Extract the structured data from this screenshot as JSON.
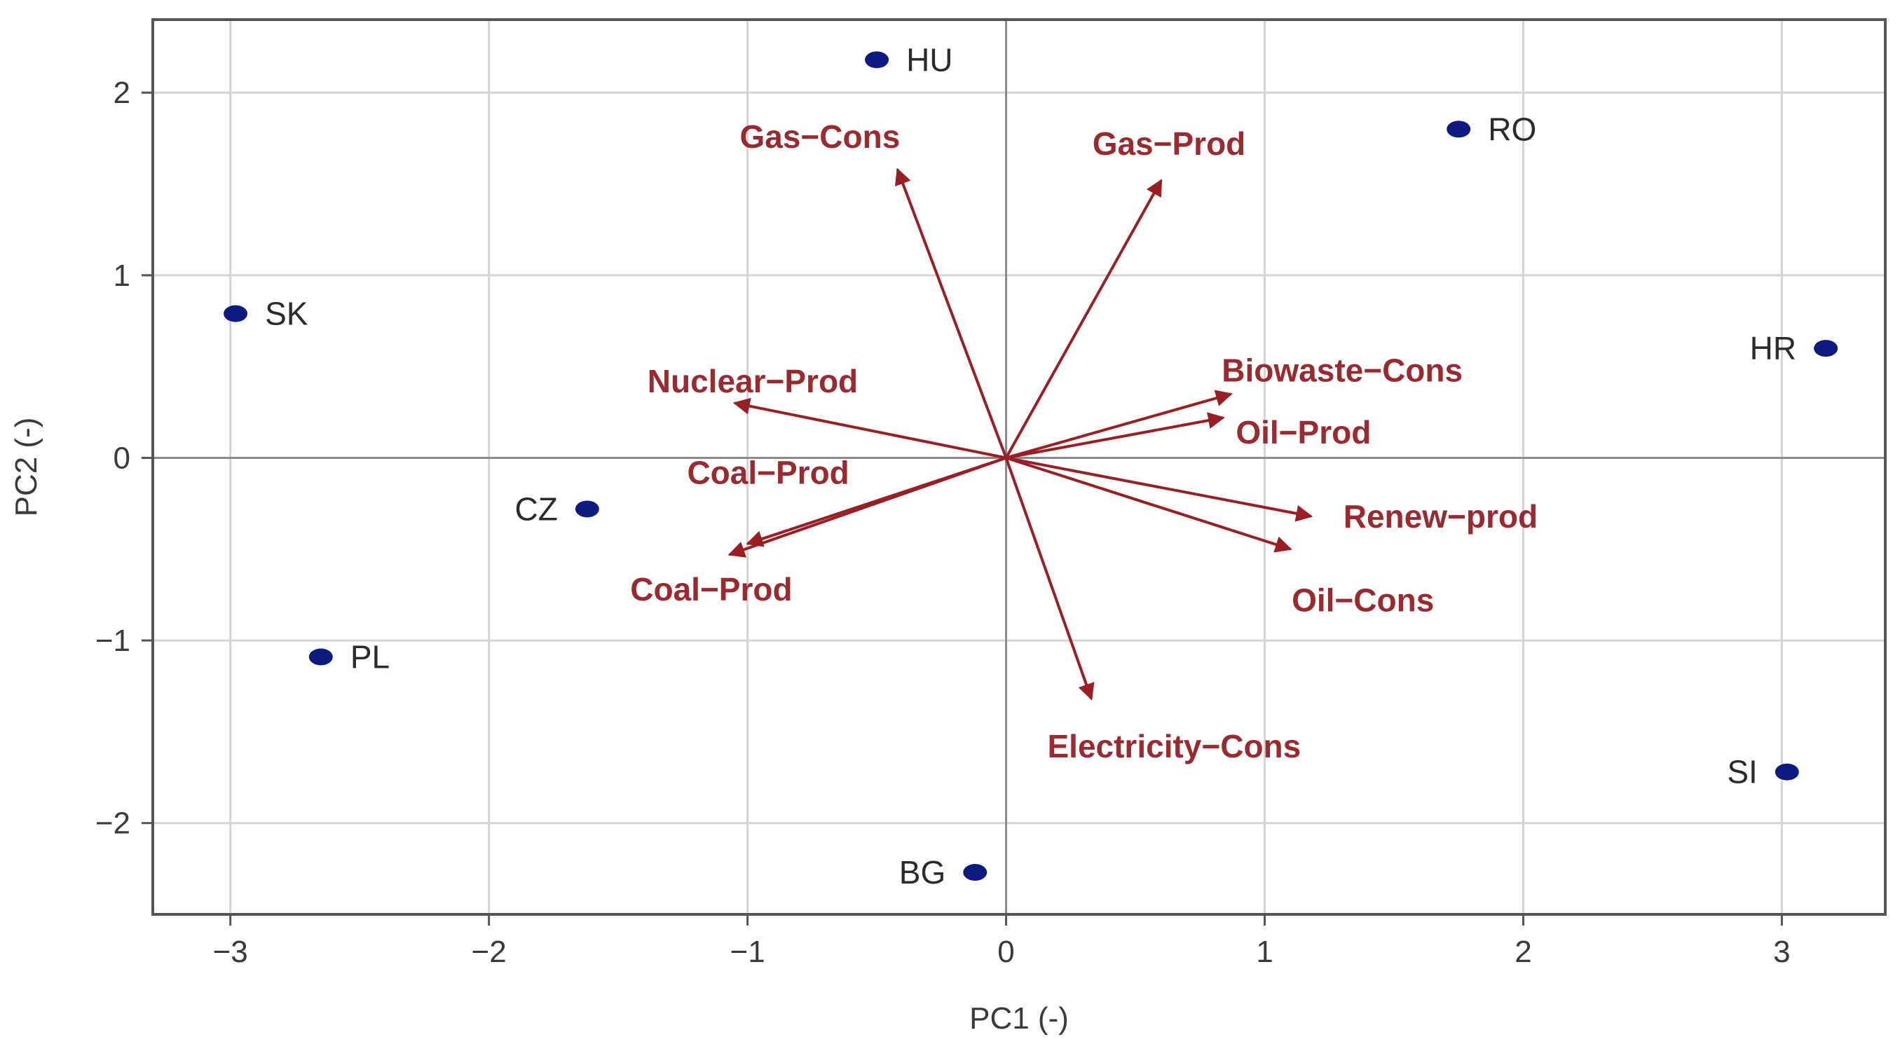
{
  "chart_data": {
    "type": "scatter",
    "subtype": "pca-biplot",
    "title": "",
    "xlabel": "PC1 (-)",
    "ylabel": "PC2 (-)",
    "xlim": [
      -3.3,
      3.4
    ],
    "ylim": [
      -2.5,
      2.4
    ],
    "xticks": [
      {
        "value": -3,
        "label": "−3"
      },
      {
        "value": -2,
        "label": "−2"
      },
      {
        "value": -1,
        "label": "−1"
      },
      {
        "value": 0,
        "label": "0"
      },
      {
        "value": 1,
        "label": "1"
      },
      {
        "value": 2,
        "label": "2"
      },
      {
        "value": 3,
        "label": "3"
      }
    ],
    "yticks": [
      {
        "value": -2,
        "label": "−2"
      },
      {
        "value": -1,
        "label": "−1"
      },
      {
        "value": 0,
        "label": "0"
      },
      {
        "value": 1,
        "label": "1"
      },
      {
        "value": 2,
        "label": "2"
      }
    ],
    "grid": true,
    "colors": {
      "points": "#0d1a80",
      "vectors": "#9a1f24",
      "vector_labels": "#9a2a30",
      "grid": "#d4d4d4",
      "zero_lines": "#8a8a8a",
      "frame": "#555555"
    },
    "points": [
      {
        "label": "HU",
        "x": -0.5,
        "y": 2.18,
        "label_side": "right"
      },
      {
        "label": "RO",
        "x": 1.75,
        "y": 1.8,
        "label_side": "right"
      },
      {
        "label": "SK",
        "x": -2.98,
        "y": 0.79,
        "label_side": "right"
      },
      {
        "label": "HR",
        "x": 3.17,
        "y": 0.6,
        "label_side": "left"
      },
      {
        "label": "CZ",
        "x": -1.62,
        "y": -0.28,
        "label_side": "left"
      },
      {
        "label": "PL",
        "x": -2.65,
        "y": -1.09,
        "label_side": "right"
      },
      {
        "label": "SI",
        "x": 3.02,
        "y": -1.72,
        "label_side": "left"
      },
      {
        "label": "BG",
        "x": -0.12,
        "y": -2.27,
        "label_side": "left"
      }
    ],
    "vectors": [
      {
        "label": "Gas−Cons",
        "x": -0.42,
        "y": 1.58,
        "label_x": -0.72,
        "label_y": 1.76
      },
      {
        "label": "Gas−Prod",
        "x": 0.6,
        "y": 1.52,
        "label_x": 0.63,
        "label_y": 1.72
      },
      {
        "label": "Nuclear−Prod",
        "x": -1.05,
        "y": 0.3,
        "label_x": -0.98,
        "label_y": 0.42
      },
      {
        "label": "Biowaste−Cons",
        "x": 0.87,
        "y": 0.35,
        "label_x": 1.3,
        "label_y": 0.48
      },
      {
        "label": "Oil−Prod",
        "x": 0.84,
        "y": 0.22,
        "label_x": 1.15,
        "label_y": 0.14
      },
      {
        "label": "Coal−Prod",
        "x": -1.0,
        "y": -0.47,
        "label_x": -0.92,
        "label_y": -0.08
      },
      {
        "label": "Coal−Prod",
        "x": -1.07,
        "y": -0.53,
        "label_x": -1.14,
        "label_y": -0.72
      },
      {
        "label": "Renew−prod",
        "x": 1.18,
        "y": -0.32,
        "label_x": 1.68,
        "label_y": -0.32
      },
      {
        "label": "Oil−Cons",
        "x": 1.1,
        "y": -0.5,
        "label_x": 1.38,
        "label_y": -0.78
      },
      {
        "label": "Electricity−Cons",
        "x": 0.33,
        "y": -1.32,
        "label_x": 0.65,
        "label_y": -1.58
      }
    ]
  }
}
